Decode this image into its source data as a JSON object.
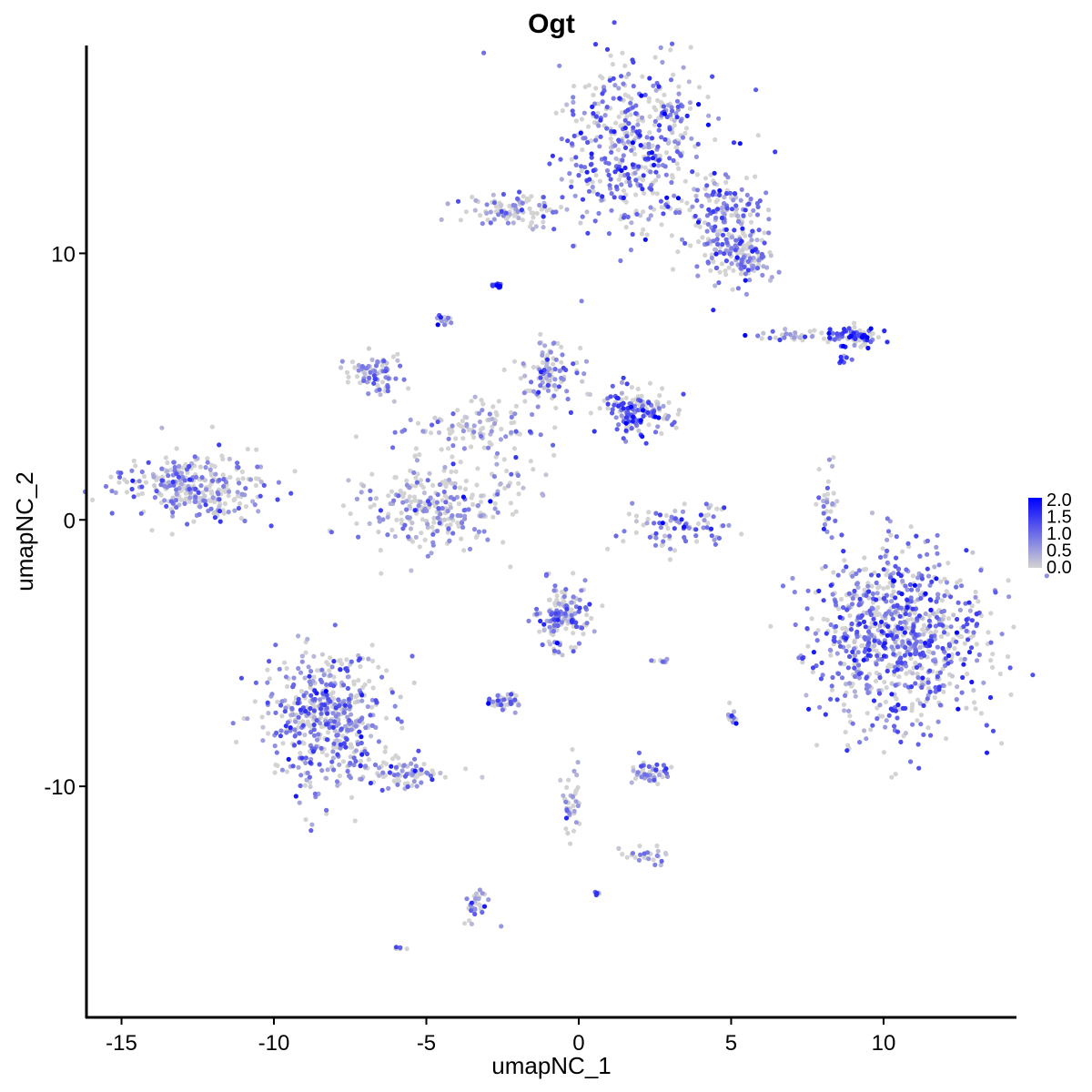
{
  "chart_data": {
    "type": "scatter",
    "title": "Ogt",
    "xlabel": "umapNC_1",
    "ylabel": "umapNC_2",
    "xlim": [
      -16.15,
      14.36
    ],
    "ylim": [
      -18.67,
      17.8
    ],
    "x_ticks": [
      -15,
      -10,
      -5,
      0,
      5,
      10
    ],
    "x_tick_labels": [
      "-15",
      "-10",
      "-5",
      "0",
      "5",
      "10"
    ],
    "y_ticks": [
      -10,
      0,
      10
    ],
    "y_tick_labels": [
      "-10",
      "0",
      "10"
    ],
    "grid": false,
    "legend": {
      "placement": "right",
      "type": "colorbar",
      "range": [
        0,
        2.0
      ],
      "ticks": [
        "0.0",
        "0.5",
        "1.0",
        "1.5",
        "2.0"
      ],
      "low_color": "#D3D3D3",
      "high_color": "#0000FF"
    },
    "clusters": [
      {
        "center": [
          1.9,
          14.0
        ],
        "spread": [
          1.3,
          1.6
        ],
        "n": 500,
        "expr": 0.9
      },
      {
        "center": [
          4.9,
          11.0
        ],
        "spread": [
          0.6,
          1.0
        ],
        "n": 200,
        "expr": 0.8
      },
      {
        "center": [
          5.5,
          9.8
        ],
        "spread": [
          0.5,
          0.4
        ],
        "n": 80,
        "expr": 0.8
      },
      {
        "center": [
          -2.1,
          11.6
        ],
        "spread": [
          0.9,
          0.3
        ],
        "n": 100,
        "expr": 0.5
      },
      {
        "center": [
          -12.6,
          1.2
        ],
        "spread": [
          1.2,
          0.6
        ],
        "n": 300,
        "expr": 0.6
      },
      {
        "center": [
          -6.7,
          5.5
        ],
        "spread": [
          0.5,
          0.4
        ],
        "n": 80,
        "expr": 0.6
      },
      {
        "center": [
          -4.8,
          0.5
        ],
        "spread": [
          1.3,
          0.8
        ],
        "n": 250,
        "expr": 0.5
      },
      {
        "center": [
          -0.9,
          5.5
        ],
        "spread": [
          0.5,
          0.6
        ],
        "n": 100,
        "expr": 0.6
      },
      {
        "center": [
          1.9,
          4.1
        ],
        "spread": [
          0.6,
          0.5
        ],
        "n": 150,
        "expr": 1.0
      },
      {
        "center": [
          -3.2,
          3.4
        ],
        "spread": [
          1.2,
          0.6
        ],
        "n": 120,
        "expr": 0.3
      },
      {
        "center": [
          3.3,
          -0.3
        ],
        "spread": [
          0.9,
          0.5
        ],
        "n": 90,
        "expr": 1.0
      },
      {
        "center": [
          9.1,
          6.9
        ],
        "spread": [
          0.4,
          0.2
        ],
        "n": 80,
        "expr": 1.3
      },
      {
        "center": [
          7.3,
          6.9
        ],
        "spread": [
          0.8,
          0.1
        ],
        "n": 40,
        "expr": 0.6
      },
      {
        "center": [
          10.6,
          -4.4
        ],
        "spread": [
          1.4,
          1.6
        ],
        "n": 900,
        "expr": 0.9
      },
      {
        "center": [
          8.2,
          0.4
        ],
        "spread": [
          0.2,
          0.8
        ],
        "n": 30,
        "expr": 0.6
      },
      {
        "center": [
          -8.2,
          -7.5
        ],
        "spread": [
          1.0,
          1.3
        ],
        "n": 500,
        "expr": 0.7
      },
      {
        "center": [
          -5.6,
          -9.5
        ],
        "spread": [
          0.8,
          0.3
        ],
        "n": 80,
        "expr": 0.7
      },
      {
        "center": [
          -0.5,
          -3.7
        ],
        "spread": [
          0.5,
          0.6
        ],
        "n": 150,
        "expr": 0.8
      },
      {
        "center": [
          -2.3,
          -6.8
        ],
        "spread": [
          0.3,
          0.2
        ],
        "n": 40,
        "expr": 0.9
      },
      {
        "center": [
          2.4,
          -9.5
        ],
        "spread": [
          0.3,
          0.2
        ],
        "n": 50,
        "expr": 0.8
      },
      {
        "center": [
          -0.3,
          -10.5
        ],
        "spread": [
          0.2,
          0.8
        ],
        "n": 40,
        "expr": 0.4
      },
      {
        "center": [
          2.2,
          -12.6
        ],
        "spread": [
          0.4,
          0.2
        ],
        "n": 25,
        "expr": 0.5
      },
      {
        "center": [
          -3.3,
          -14.6
        ],
        "spread": [
          0.2,
          0.4
        ],
        "n": 30,
        "expr": 0.6
      },
      {
        "center": [
          -2.7,
          8.8
        ],
        "spread": [
          0.1,
          0.05
        ],
        "n": 10,
        "expr": 1.5
      },
      {
        "center": [
          -4.4,
          7.5
        ],
        "spread": [
          0.1,
          0.1
        ],
        "n": 15,
        "expr": 0.8
      },
      {
        "center": [
          -5.9,
          -16.1
        ],
        "spread": [
          0.1,
          0.05
        ],
        "n": 6,
        "expr": 1.0
      },
      {
        "center": [
          0.6,
          -14.0
        ],
        "spread": [
          0.05,
          0.05
        ],
        "n": 5,
        "expr": 1.2
      },
      {
        "center": [
          5.0,
          -7.3
        ],
        "spread": [
          0.1,
          0.2
        ],
        "n": 15,
        "expr": 0.8
      },
      {
        "center": [
          2.8,
          -5.3
        ],
        "spread": [
          0.2,
          0.05
        ],
        "n": 8,
        "expr": 0.8
      },
      {
        "center": [
          -2.1,
          1.4
        ],
        "spread": [
          0.4,
          0.3
        ],
        "n": 12,
        "expr": 0.4
      },
      {
        "center": [
          8.7,
          6.0
        ],
        "spread": [
          0.15,
          0.1
        ],
        "n": 8,
        "expr": 1.0
      }
    ]
  }
}
